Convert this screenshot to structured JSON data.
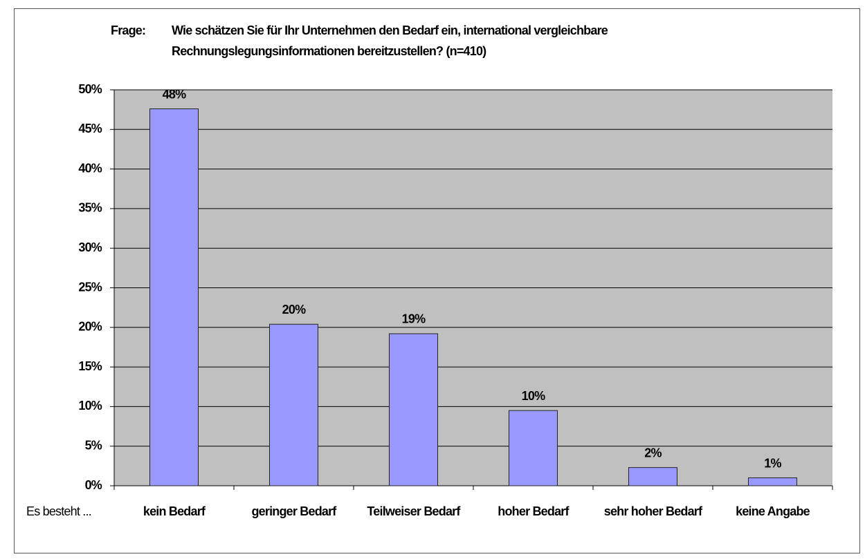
{
  "chart_data": {
    "type": "bar",
    "title_prefix": "Frage:",
    "title": [
      "Wie schätzen Sie für Ihr Unternehmen den Bedarf ein, international vergleichbare",
      "Rechnungslegungsinformationen bereitzustellen? (n=410)"
    ],
    "x_label": "Es besteht ...",
    "categories": [
      "kein Bedarf",
      "geringer Bedarf",
      "Teilweiser Bedarf",
      "hoher Bedarf",
      "sehr hoher Bedarf",
      "keine Angabe"
    ],
    "values": [
      47.6,
      20.4,
      19.2,
      9.5,
      2.3,
      1.0
    ],
    "value_labels": [
      "48%",
      "20%",
      "19%",
      "10%",
      "2%",
      "1%"
    ],
    "color": "#9999ff",
    "ylim": [
      0,
      50
    ],
    "yticks": [
      {
        "value": 0,
        "label": "0%"
      },
      {
        "value": 5,
        "label": "5%"
      },
      {
        "value": 10,
        "label": "10%"
      },
      {
        "value": 15,
        "label": "15%"
      },
      {
        "value": 20,
        "label": "20%"
      },
      {
        "value": 25,
        "label": "25%"
      },
      {
        "value": 30,
        "label": "30%"
      },
      {
        "value": 35,
        "label": "35%"
      },
      {
        "value": 40,
        "label": "40%"
      },
      {
        "value": 45,
        "label": "45%"
      },
      {
        "value": 50,
        "label": "50%"
      }
    ],
    "grid": true
  }
}
